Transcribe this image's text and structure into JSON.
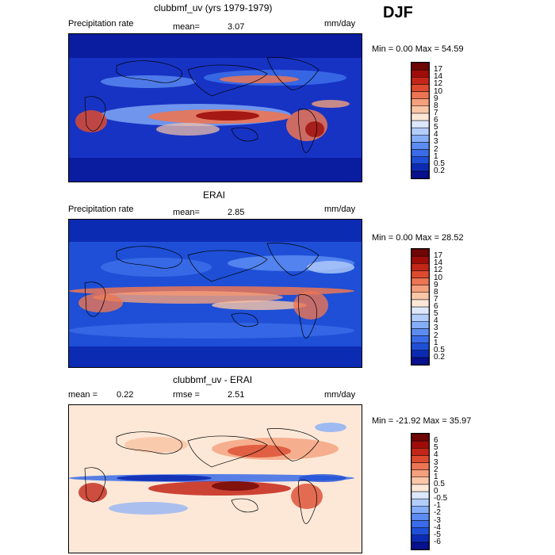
{
  "season": "DJF",
  "chart_data": [
    {
      "type": "heatmap",
      "title": "clubbmf_uv (yrs 1979-1979)",
      "left_label": "Precipitation rate",
      "stat_label": "mean=",
      "stat_value": "3.07",
      "units": "mm/day",
      "range_text": "Min =    0.00 Max =  54.59",
      "colorbar_levels": [
        "0.2",
        "0.5",
        "1",
        "2",
        "3",
        "4",
        "5",
        "6",
        "7",
        "8",
        "9",
        "10",
        "12",
        "14",
        "17"
      ],
      "colorbar_colors": [
        "#08108e",
        "#0c2bb3",
        "#1e4fd6",
        "#3a6be8",
        "#5c8cf2",
        "#86aef8",
        "#b3cdfb",
        "#dde8fd",
        "#fde8d8",
        "#f9c6a8",
        "#f4a07c",
        "#ec7553",
        "#dc4b30",
        "#c32618",
        "#9e0d0a",
        "#6e0605"
      ],
      "mean_value": 3.07,
      "min_value": 0.0,
      "max_value": 54.59
    },
    {
      "type": "heatmap",
      "title": "ERAI",
      "left_label": "Precipitation rate",
      "stat_label": "mean=",
      "stat_value": "2.85",
      "units": "mm/day",
      "range_text": "Min =    0.00 Max =  28.52",
      "colorbar_levels": [
        "0.2",
        "0.5",
        "1",
        "2",
        "3",
        "4",
        "5",
        "6",
        "7",
        "8",
        "9",
        "10",
        "12",
        "14",
        "17"
      ],
      "colorbar_colors": [
        "#08108e",
        "#0c2bb3",
        "#1e4fd6",
        "#3a6be8",
        "#5c8cf2",
        "#86aef8",
        "#b3cdfb",
        "#dde8fd",
        "#fde8d8",
        "#f9c6a8",
        "#f4a07c",
        "#ec7553",
        "#dc4b30",
        "#c32618",
        "#9e0d0a",
        "#6e0605"
      ],
      "mean_value": 2.85,
      "min_value": 0.0,
      "max_value": 28.52
    },
    {
      "type": "heatmap",
      "title": "clubbmf_uv - ERAI",
      "left_label": "mean =",
      "left_value": "0.22",
      "stat_label": "rmse =",
      "stat_value": "2.51",
      "units": "mm/day",
      "range_text": "Min = -21.92 Max =  35.97",
      "colorbar_levels": [
        "-6",
        "-5",
        "-4",
        "-3",
        "-2",
        "-1",
        "-0.5",
        "0",
        "0.5",
        "1",
        "2",
        "3",
        "4",
        "5",
        "6"
      ],
      "colorbar_colors": [
        "#08108e",
        "#0c2bb3",
        "#1e4fd6",
        "#3a6be8",
        "#5c8cf2",
        "#86aef8",
        "#b3cdfb",
        "#dde8fd",
        "#fde8d8",
        "#f9c6a8",
        "#f4a07c",
        "#ec7553",
        "#dc4b30",
        "#c32618",
        "#9e0d0a",
        "#6e0605"
      ],
      "mean_value": 0.22,
      "rmse_value": 2.51,
      "min_value": -21.92,
      "max_value": 35.97
    }
  ]
}
